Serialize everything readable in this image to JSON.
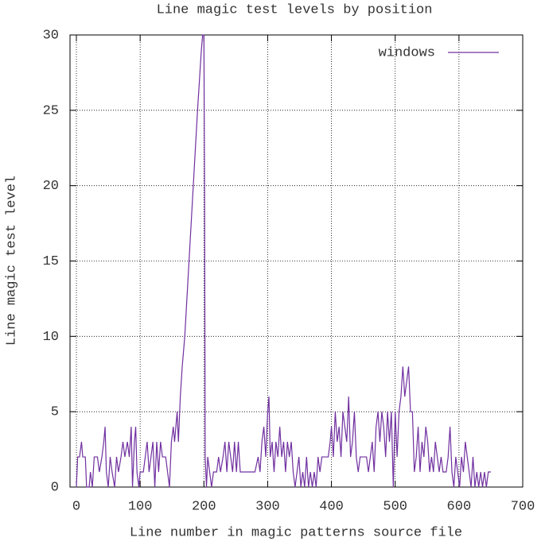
{
  "chart_data": {
    "type": "line",
    "title": "Line magic test levels by position",
    "x_label": "Line number in magic patterns source file",
    "y_label": "Line magic test level",
    "x": [
      0,
      2,
      5,
      8,
      10,
      14,
      16,
      20,
      22,
      25,
      28,
      33,
      36,
      40,
      43,
      45,
      47,
      50,
      53,
      56,
      60,
      63,
      66,
      70,
      73,
      76,
      80,
      83,
      86,
      88,
      91,
      93,
      95,
      98,
      100,
      105,
      108,
      111,
      114,
      117,
      120,
      123,
      126,
      129,
      132,
      135,
      140,
      143,
      146,
      149,
      152,
      154,
      156,
      158,
      160,
      163,
      166,
      170,
      174,
      178,
      182,
      186,
      190,
      193,
      196,
      198,
      200,
      201,
      202,
      204,
      206,
      209,
      212,
      215,
      220,
      223,
      226,
      230,
      233,
      236,
      239,
      242,
      245,
      248,
      251,
      254,
      257,
      260,
      270,
      280,
      285,
      288,
      291,
      294,
      297,
      300,
      302,
      304,
      307,
      310,
      313,
      316,
      319,
      322,
      325,
      328,
      331,
      334,
      337,
      340,
      343,
      346,
      349,
      352,
      355,
      358,
      361,
      364,
      367,
      370,
      373,
      376,
      379,
      382,
      385,
      390,
      395,
      398,
      400,
      403,
      406,
      409,
      412,
      415,
      418,
      421,
      424,
      427,
      430,
      433,
      436,
      439,
      442,
      445,
      450,
      455,
      458,
      461,
      464,
      467,
      470,
      473,
      476,
      479,
      482,
      485,
      488,
      491,
      494,
      497,
      500,
      503,
      506,
      509,
      512,
      515,
      518,
      521,
      524,
      527,
      530,
      533,
      536,
      539,
      542,
      545,
      548,
      551,
      554,
      557,
      560,
      563,
      566,
      569,
      572,
      575,
      580,
      583,
      586,
      589,
      592,
      595,
      598,
      601,
      604,
      607,
      610,
      613,
      616,
      619,
      622,
      625,
      628,
      631,
      634,
      637,
      640,
      643,
      646,
      650
    ],
    "series": [
      {
        "name": "windows",
        "color": "#7030a0",
        "values": [
          0,
          2,
          2,
          3,
          2,
          2,
          0,
          0,
          1,
          0,
          2,
          2,
          1,
          2,
          3,
          4,
          1,
          0,
          2,
          1,
          0,
          2,
          1,
          2,
          3,
          2,
          3,
          2,
          4,
          0,
          3,
          4,
          1,
          0,
          1,
          1,
          2,
          3,
          1,
          2,
          3,
          0,
          3,
          1,
          3,
          2,
          2,
          1,
          0,
          3,
          4,
          3,
          4,
          5,
          3,
          6,
          8,
          10,
          13,
          16,
          19,
          22,
          25,
          27,
          29,
          30,
          30,
          20,
          2,
          0,
          2,
          1,
          0,
          1,
          1,
          2,
          1,
          2,
          3,
          1,
          3,
          2,
          1,
          3,
          1,
          3,
          1,
          1,
          1,
          1,
          2,
          1,
          3,
          4,
          2,
          5,
          6,
          2,
          3,
          1,
          3,
          2,
          4,
          2,
          3,
          1,
          3,
          2,
          3,
          1,
          0,
          1,
          2,
          0,
          1,
          0,
          2,
          0,
          1,
          0,
          1,
          0,
          2,
          1,
          2,
          2,
          2,
          3,
          4,
          2,
          5,
          3,
          4,
          2,
          5,
          4,
          3,
          6,
          2,
          3,
          5,
          2,
          1,
          2,
          2,
          2,
          1,
          2,
          3,
          1,
          4,
          5,
          3,
          5,
          4,
          2,
          5,
          3,
          5,
          0,
          5,
          2,
          5,
          6,
          8,
          6,
          7,
          8,
          5,
          5,
          1,
          2,
          4,
          1,
          3,
          2,
          4,
          3,
          1,
          2,
          1,
          3,
          2,
          1,
          2,
          1,
          1,
          2,
          4,
          1,
          0,
          2,
          1,
          0,
          2,
          1,
          3,
          2,
          1,
          0,
          2,
          0,
          1,
          0,
          1,
          0,
          1,
          0,
          1,
          1
        ]
      }
    ],
    "xlim": [
      -10,
      700
    ],
    "ylim": [
      0,
      30
    ],
    "xticks": [
      0,
      100,
      200,
      300,
      400,
      500,
      600,
      700
    ],
    "yticks": [
      0,
      5,
      10,
      15,
      20,
      25,
      30
    ],
    "grid": true,
    "legend": "top-right"
  }
}
